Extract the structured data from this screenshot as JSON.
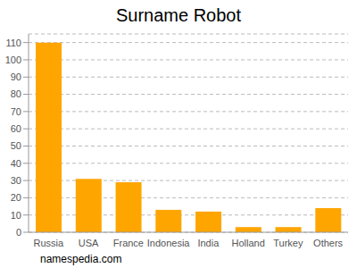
{
  "chart_data": {
    "type": "bar",
    "title": "Surname Robot",
    "annotation": "namespedia.com",
    "categories": [
      "Russia",
      "USA",
      "France",
      "Indonesia",
      "India",
      "Holland",
      "Turkey",
      "Others"
    ],
    "values": [
      110,
      31,
      29,
      13,
      12,
      3,
      3,
      14
    ],
    "color": "#ffa500",
    "ylim": [
      0,
      115
    ],
    "yticks": [
      0,
      10,
      20,
      30,
      40,
      50,
      60,
      70,
      80,
      90,
      100,
      110
    ],
    "grid": true
  }
}
